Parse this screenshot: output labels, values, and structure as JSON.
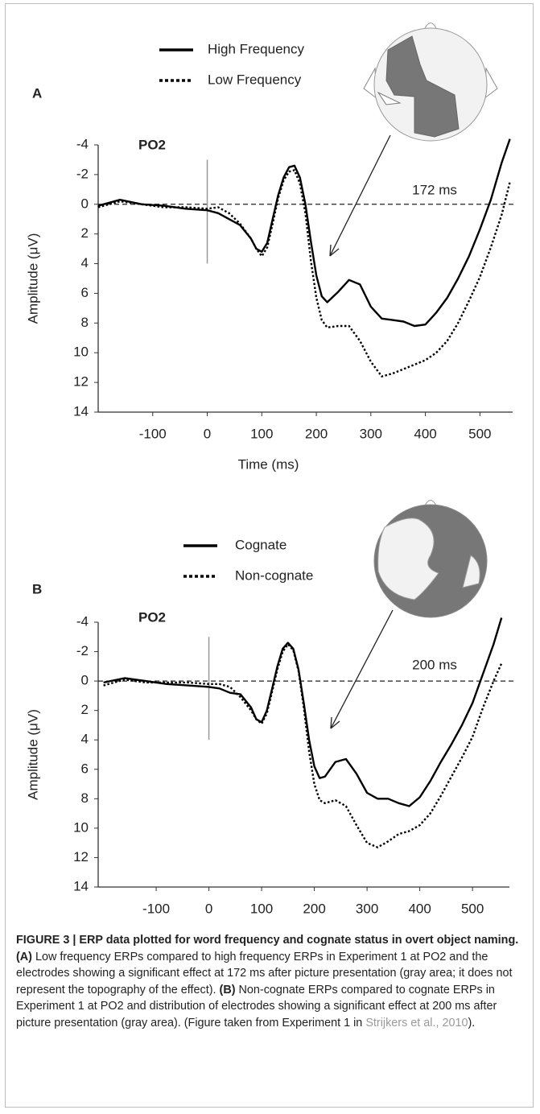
{
  "chart_data": [
    {
      "type": "line",
      "panel_label": "A",
      "channel": "PO2",
      "latency": "172 ms",
      "xlabel": "Time (ms)",
      "ylabel": "Amplitude (μV)",
      "x": [
        -200,
        -160,
        -120,
        -80,
        -40,
        0,
        20,
        40,
        60,
        80,
        90,
        100,
        110,
        120,
        130,
        140,
        150,
        160,
        170,
        180,
        190,
        200,
        210,
        220,
        240,
        260,
        280,
        300,
        320,
        340,
        360,
        380,
        400,
        420,
        440,
        460,
        480,
        500,
        520,
        540,
        555
      ],
      "series": [
        {
          "name": "High Frequency",
          "color": "#000000",
          "line_style": "solid",
          "values": [
            0.1,
            -0.3,
            0,
            0.1,
            0.3,
            0.4,
            0.6,
            1.0,
            1.4,
            2.3,
            3.0,
            3.2,
            2.6,
            1.0,
            -0.6,
            -1.8,
            -2.5,
            -2.6,
            -1.8,
            0,
            2.5,
            4.8,
            6.2,
            6.6,
            5.9,
            5.1,
            5.4,
            6.9,
            7.7,
            7.8,
            7.9,
            8.2,
            8.1,
            7.3,
            6.3,
            5.0,
            3.5,
            1.7,
            -0.3,
            -2.8,
            -4.4
          ]
        },
        {
          "name": "Low Frequency",
          "color": "#000000",
          "line_style": "dotted",
          "values": [
            0.2,
            -0.2,
            0,
            0.2,
            0.2,
            0.3,
            0.2,
            0.6,
            1.3,
            2.3,
            3.0,
            3.5,
            2.9,
            1.3,
            -0.4,
            -1.6,
            -2.2,
            -2.3,
            -1.4,
            0.6,
            3.8,
            6.3,
            7.8,
            8.3,
            8.2,
            8.2,
            9.2,
            10.6,
            11.6,
            11.4,
            11.1,
            10.8,
            10.5,
            10.0,
            9.2,
            8.0,
            6.5,
            4.9,
            2.9,
            0.7,
            -1.5
          ]
        }
      ],
      "xlim": [
        -200,
        560
      ],
      "xticks": [
        -100,
        0,
        100,
        200,
        300,
        400,
        500
      ],
      "ylim": [
        -4,
        14
      ],
      "yticks": [
        -4,
        -2,
        0,
        2,
        4,
        6,
        8,
        10,
        12,
        14
      ],
      "y_inverted": true
    },
    {
      "type": "line",
      "panel_label": "B",
      "channel": "PO2",
      "latency": "200 ms",
      "ylabel": "Amplitude (μV)",
      "x": [
        -200,
        -160,
        -120,
        -80,
        -40,
        0,
        20,
        40,
        60,
        80,
        90,
        100,
        110,
        120,
        130,
        140,
        150,
        160,
        170,
        180,
        190,
        200,
        210,
        220,
        240,
        260,
        280,
        300,
        320,
        340,
        360,
        380,
        400,
        420,
        440,
        460,
        480,
        500,
        520,
        540,
        555
      ],
      "series": [
        {
          "name": "Cognate",
          "color": "#000000",
          "line_style": "solid",
          "values": [
            0.1,
            -0.2,
            0,
            0.2,
            0.3,
            0.4,
            0.5,
            0.8,
            0.9,
            1.8,
            2.6,
            2.8,
            2.0,
            0.5,
            -1.0,
            -2.2,
            -2.6,
            -2.2,
            -0.8,
            1.5,
            4.0,
            5.8,
            6.6,
            6.5,
            5.5,
            5.3,
            6.3,
            7.6,
            8.0,
            8.0,
            8.3,
            8.5,
            7.9,
            6.8,
            5.5,
            4.3,
            3.0,
            1.5,
            -0.5,
            -2.5,
            -4.3
          ]
        },
        {
          "name": "Non-cognate",
          "color": "#000000",
          "line_style": "dotted",
          "values": [
            0.3,
            -0.1,
            0.1,
            0.1,
            0.1,
            0.2,
            0.2,
            0.4,
            1.1,
            2.0,
            2.6,
            2.9,
            2.2,
            0.7,
            -0.8,
            -2.0,
            -2.5,
            -2.1,
            -0.7,
            1.8,
            4.8,
            7.0,
            8.1,
            8.3,
            8.1,
            8.5,
            9.8,
            11.0,
            11.3,
            10.9,
            10.4,
            10.2,
            9.8,
            9.0,
            7.8,
            6.5,
            5.2,
            3.8,
            1.8,
            0,
            -1.2
          ]
        }
      ],
      "xlim": [
        -210,
        570
      ],
      "xticks": [
        -100,
        0,
        100,
        200,
        300,
        400,
        500
      ],
      "ylim": [
        -4,
        14
      ],
      "yticks": [
        -4,
        -2,
        0,
        2,
        4,
        6,
        8,
        10,
        12,
        14
      ],
      "y_inverted": true
    }
  ],
  "caption": {
    "title": "FIGURE 3 | ERP data plotted for word frequency and cognate status in overt object naming.",
    "a_label": "(A)",
    "a_text": "Low frequency ERPs compared to high frequency ERPs in Experiment 1 at PO2 and the electrodes showing a significant effect at 172 ms after picture presentation (gray area; it does not represent the topography of the effect).",
    "b_label": "(B)",
    "b_text": "Non-cognate ERPs compared to cognate ERPs in Experiment 1 at PO2 and distribution of electrodes showing a significant effect at 200 ms after picture presentation (gray area). (Figure taken from Experiment 1 in",
    "citation": "Strijkers et al., 2010",
    "end": ")."
  }
}
